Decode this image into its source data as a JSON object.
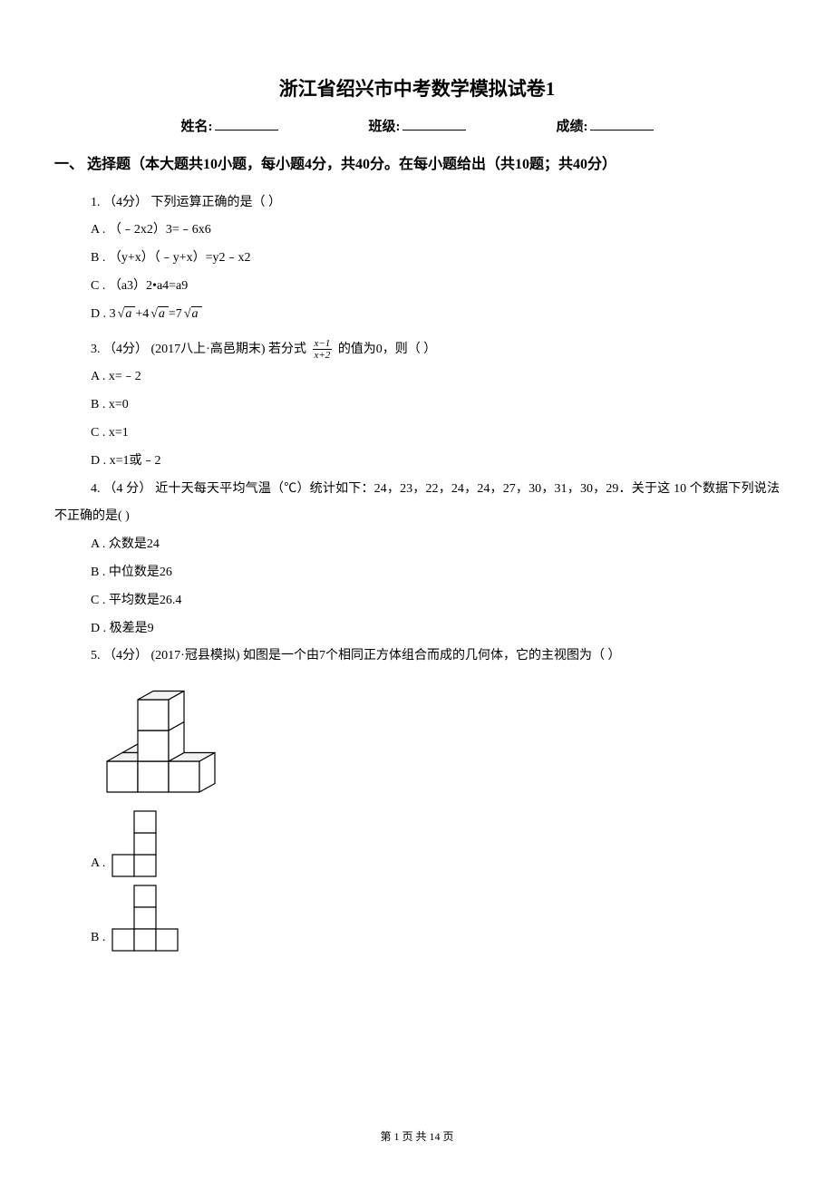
{
  "title": "浙江省绍兴市中考数学模拟试卷1",
  "info": {
    "name_label": "姓名:",
    "class_label": "班级:",
    "score_label": "成绩:"
  },
  "section1": {
    "header": "一、 选择题（本大题共10小题，每小题4分，共40分。在每小题给出（共10题；共40分）"
  },
  "q1": {
    "stem": "1. （4分） 下列运算正确的是（    ）",
    "optA": "A .  （﹣2x2）3=﹣6x6",
    "optB": "B .  （y+x）（﹣y+x）=y2﹣x2",
    "optC": "C .  （a3）2•a4=a9",
    "optD_pre": "D .  3",
    "optD_mid": "+4",
    "optD_eq": "=7",
    "sqrt_a": "a"
  },
  "q3": {
    "stem_pre": "3. （4分） (2017八上·高邑期末) 若分式 ",
    "frac_num": "x−1",
    "frac_den": "x+2",
    "stem_post": " 的值为0，则（    ）",
    "optA": "A .  x=﹣2",
    "optB": "B .  x=0",
    "optC": "C .  x=1",
    "optD": "D .  x=1或﹣2"
  },
  "q4": {
    "stem": "4. （4 分）  近十天每天平均气温（℃）统计如下：24，23，22，24，24，27，30，31，30，29．关于这 10 个数据下列说法不正确的是(      )",
    "optA": "A .  众数是24",
    "optB": "B .  中位数是26",
    "optC": "C .  平均数是26.4",
    "optD": "D .  极差是9"
  },
  "q5": {
    "stem": "5. （4分） (2017·冠县模拟) 如图是一个由7个相同正方体组合而成的几何体，它的主视图为（    ）",
    "optA": "A . ",
    "optB": "B . "
  },
  "footer": {
    "text": "第 1 页 共 14 页"
  },
  "figures": {
    "iso_cube": 34,
    "cell_2d": 24,
    "stroke": "#000000",
    "fill": "#ffffff",
    "top_fill": "#f2f2f2"
  }
}
